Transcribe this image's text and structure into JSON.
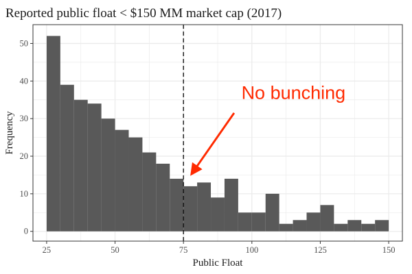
{
  "chart_data": {
    "type": "bar",
    "title": "Reported public float < $150 MM market cap (2017)",
    "xlabel": "Public Float",
    "ylabel": "Frequency",
    "xlim": [
      20,
      155
    ],
    "ylim": [
      -2.6,
      55
    ],
    "bin_width": 5,
    "bin_starts": [
      25,
      30,
      35,
      40,
      45,
      50,
      55,
      60,
      65,
      70,
      75,
      80,
      85,
      90,
      95,
      100,
      105,
      110,
      115,
      120,
      125,
      130,
      135,
      140,
      145
    ],
    "values": [
      52,
      39,
      35,
      34,
      30,
      27,
      25,
      21,
      18,
      14,
      12,
      13,
      9,
      14,
      5,
      5,
      10,
      2,
      3,
      5,
      7,
      2,
      3,
      2,
      3
    ],
    "x_ticks": [
      25,
      50,
      75,
      100,
      125,
      150
    ],
    "x_tick_labels": [
      "25",
      "50",
      "75",
      "100",
      "125",
      "150"
    ],
    "y_ticks": [
      0,
      10,
      20,
      30,
      40,
      50
    ],
    "y_tick_labels": [
      "0",
      "10",
      "20",
      "30",
      "40",
      "50"
    ],
    "vline": 75,
    "annotation": {
      "text": "No bunching",
      "color": "#ff2a00",
      "text_x": 115.2,
      "text_y": 35.2,
      "arrow_from": [
        93.5,
        31.5
      ],
      "arrow_to": [
        78,
        15.3
      ]
    },
    "grid": true,
    "bar_color": "#595959",
    "grid_color": "#ebebeb"
  }
}
